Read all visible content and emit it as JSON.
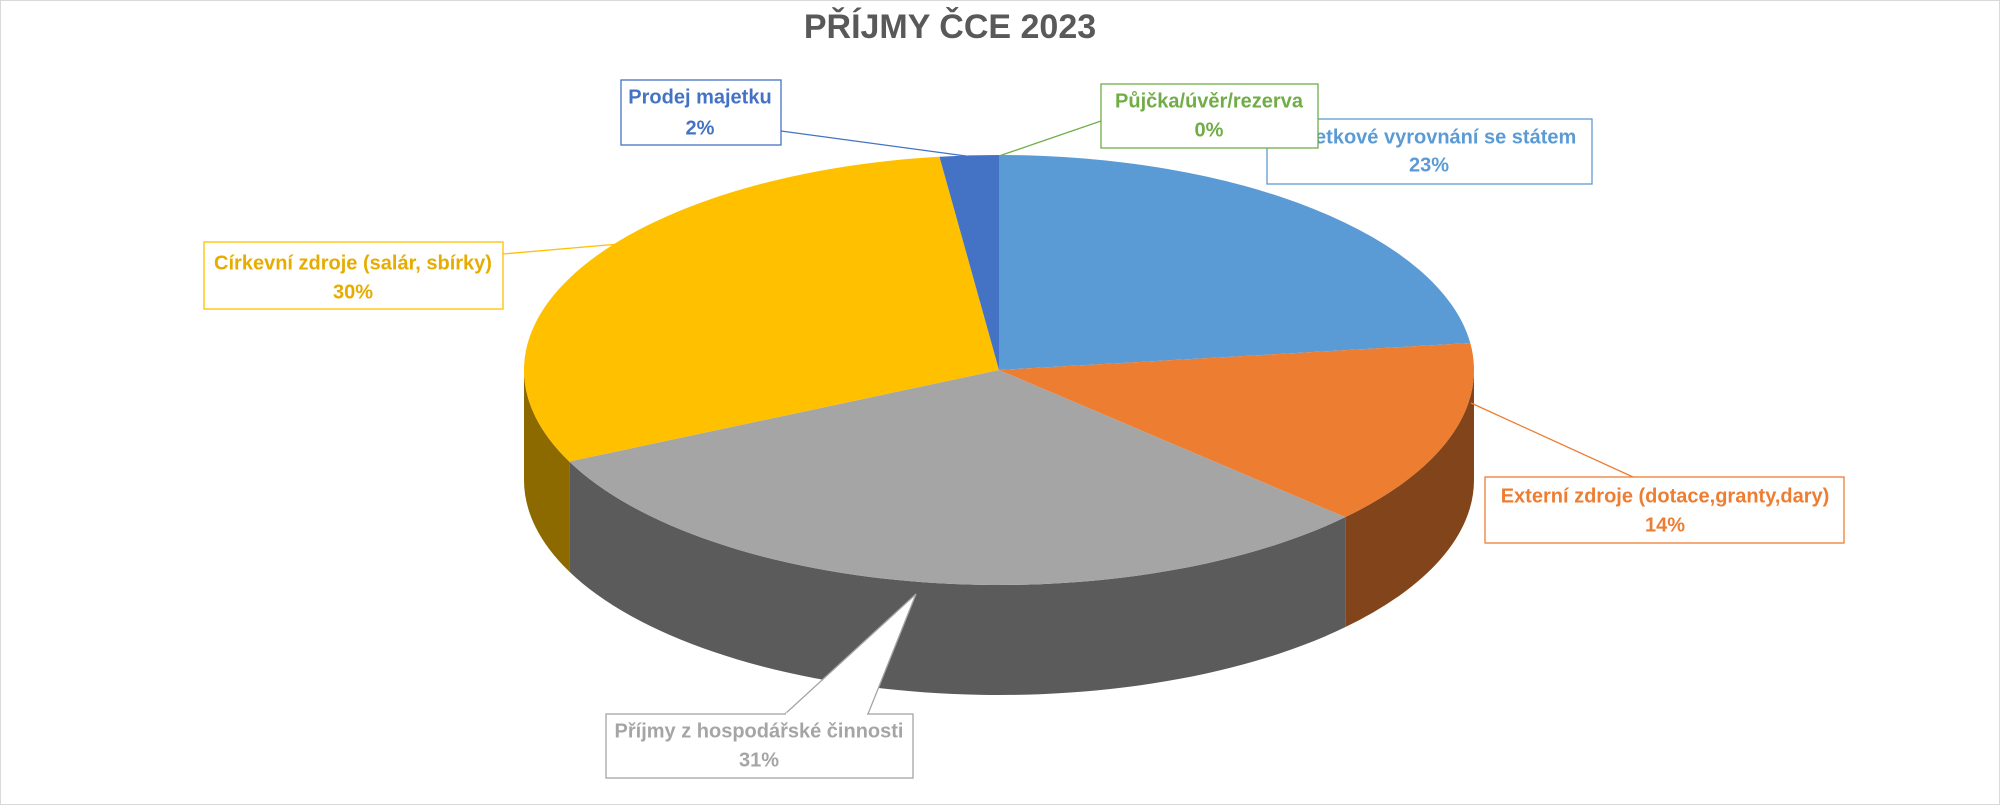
{
  "chart_data": {
    "type": "pie",
    "title": "PŘÍJMY ČCE 2023",
    "categories": [
      "Majetkové vyrovnání se státem",
      "Externí zdroje (dotace,granty,dary)",
      "Příjmy z hospodářské činnosti",
      "Církevní zdroje (salár, sbírky)",
      "Prodej majetku",
      "Půjčka/úvěr/rezerva"
    ],
    "values": [
      23,
      14,
      31,
      30,
      2,
      0
    ],
    "value_labels": [
      "23%",
      "14%",
      "31%",
      "30%",
      "2%",
      "0%"
    ],
    "colors": [
      "#5b9bd5",
      "#ed7d31",
      "#a5a5a5",
      "#ffc000",
      "#4472c4",
      "#70ad47"
    ]
  }
}
